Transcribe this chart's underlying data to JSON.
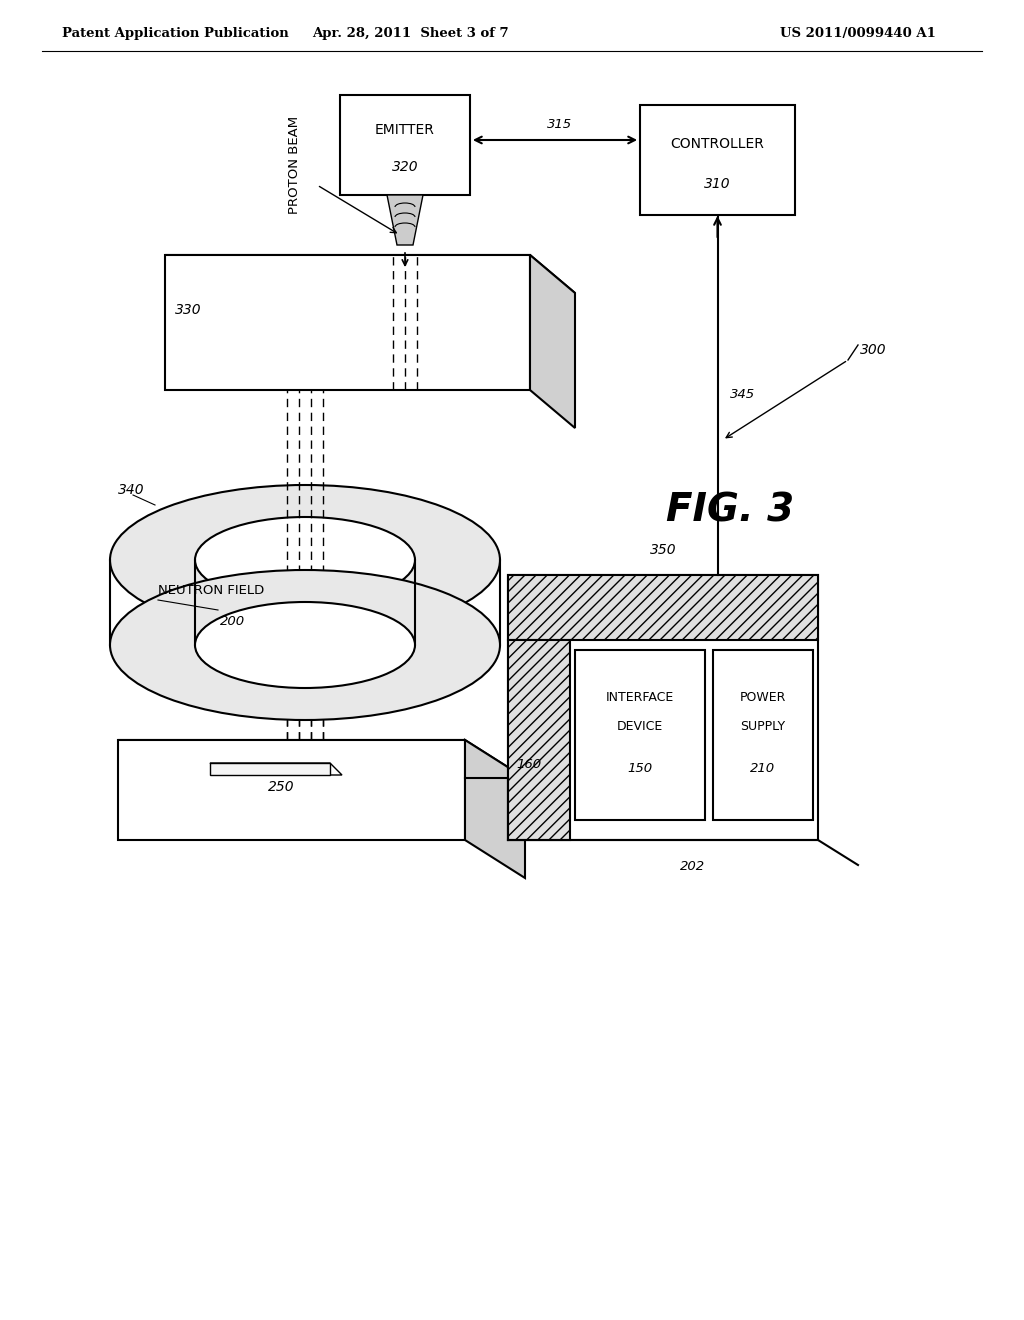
{
  "bg_color": "#ffffff",
  "header_left": "Patent Application Publication",
  "header_mid": "Apr. 28, 2011  Sheet 3 of 7",
  "header_right": "US 2011/0099440 A1",
  "fig_label": "FIG. 3",
  "lw": 1.5,
  "lw_thin": 1.0,
  "gray_light": "#e8e8e8",
  "gray_mid": "#d0d0d0",
  "gray_dark": "#b0b0b0"
}
